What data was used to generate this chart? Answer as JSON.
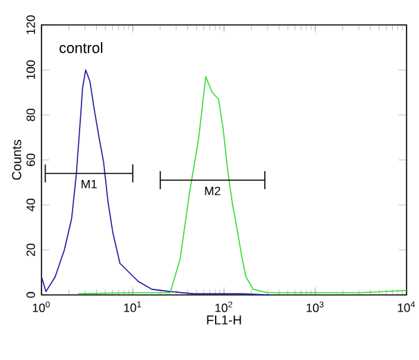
{
  "chart_data": {
    "type": "line",
    "xlabel": "FL1-H",
    "ylabel": "Counts",
    "log": "x",
    "xlim": [
      1,
      10000
    ],
    "ylim": [
      0,
      120
    ],
    "xticks": [
      {
        "value": 1,
        "label": "10$^{0}$"
      },
      {
        "value": 10,
        "label": "10$^{1}$"
      },
      {
        "value": 100,
        "label": "10$^{2}$"
      },
      {
        "value": 1000,
        "label": "10$^{3}$"
      },
      {
        "value": 10000,
        "label": "10$^{4}$"
      }
    ],
    "yticks": [
      0,
      20,
      40,
      60,
      80,
      100,
      120
    ],
    "grid": false,
    "marker": "none",
    "line_style": "solid",
    "annotations": [
      "control"
    ],
    "series": [
      {
        "color": "#1c1c9c",
        "x": [
          1,
          1.12,
          1.41,
          1.78,
          2.14,
          2.4,
          2.69,
          2.82,
          3.05,
          3.39,
          3.8,
          4.27,
          4.79,
          5.37,
          6.03,
          7.24,
          9.12,
          11.5,
          16.2,
          25.7,
          46.8,
          158,
          316
        ],
        "values": [
          8,
          1.5,
          8,
          20,
          34,
          53,
          80,
          92,
          100,
          95,
          82,
          70,
          59,
          41,
          28,
          14,
          10,
          6,
          2.5,
          1.5,
          0.5,
          0.5,
          0
        ]
      },
      {
        "color": "#33dd33",
        "x": [
          2.51,
          10,
          25.7,
          33.1,
          41.7,
          52.5,
          63.1,
          74.1,
          87.1,
          97.7,
          110,
          123,
          138,
          155,
          174,
          209,
          295,
          1000,
          3160,
          10000
        ],
        "values": [
          0.5,
          1,
          1,
          16,
          45,
          69,
          97,
          90,
          87,
          74,
          55,
          41,
          30,
          18,
          8,
          2.5,
          1,
          1,
          1,
          2
        ]
      },
      {
        "name": "M1",
        "color": "#000000",
        "x": [
          1.1,
          10
        ],
        "values": [
          54,
          54
        ],
        "errors": [
          4,
          4
        ]
      },
      {
        "name": "M2",
        "color": "#000000",
        "x": [
          20,
          280
        ],
        "values": [
          51,
          51
        ],
        "errors": [
          4,
          4
        ]
      }
    ]
  }
}
